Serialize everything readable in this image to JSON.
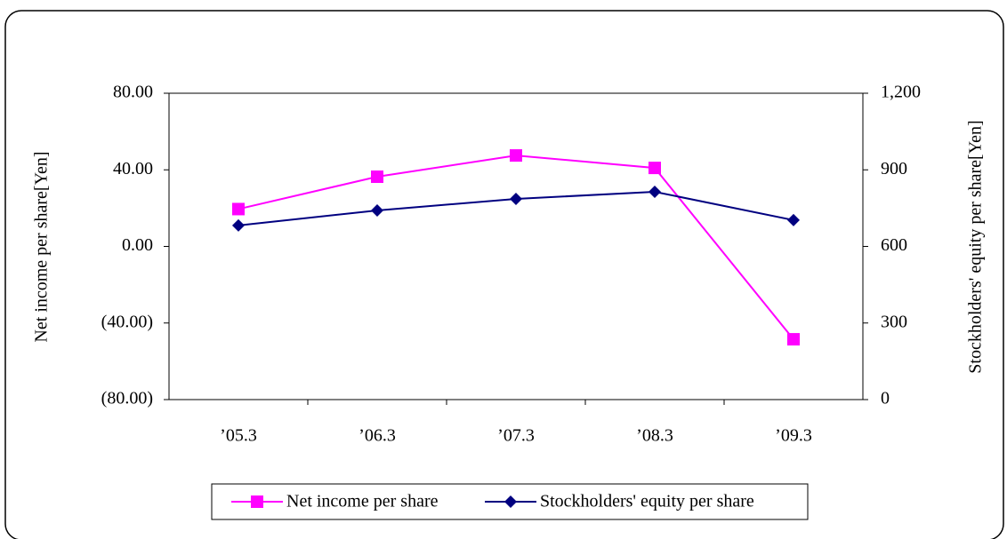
{
  "chart_data": {
    "type": "line",
    "categories": [
      "’05.3",
      "’06.3",
      "’07.3",
      "’08.3",
      "’09.3"
    ],
    "y_label": "Net income per share[Yen]",
    "y2_label": "Stockholders' equity per share[Yen]",
    "series": [
      {
        "name": "Net income per share",
        "color": "#ff00ff",
        "marker": "square",
        "values": [
          19.5,
          36.4,
          47.5,
          41,
          -48.5
        ]
      },
      {
        "name": "Stockholders' equity per share",
        "color": "#000080",
        "marker": "diamond",
        "axis": "y2",
        "values": [
          682,
          741,
          786,
          814,
          703
        ]
      }
    ],
    "ylim": [
      -80,
      80
    ],
    "yticks": [
      {
        "value": 80,
        "label": "80.00"
      },
      {
        "value": 40,
        "label": "40.00"
      },
      {
        "value": 0,
        "label": "0.00"
      },
      {
        "value": -40,
        "label": "(40.00)"
      },
      {
        "value": -80,
        "label": "(80.00)"
      }
    ],
    "y2lim": [
      0,
      1200
    ],
    "y2ticks": [
      0,
      300,
      600,
      900,
      {
        "value": 1200,
        "label": "1,200"
      }
    ],
    "grid": false,
    "legend": "bottom"
  }
}
